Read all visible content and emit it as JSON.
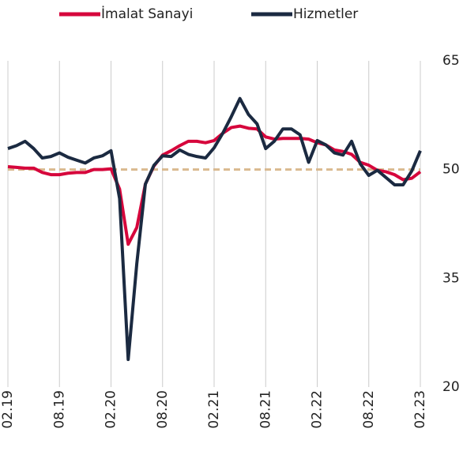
{
  "chart_data": {
    "type": "line",
    "categories": [
      "02.19",
      null,
      null,
      null,
      null,
      null,
      "08.19",
      null,
      null,
      null,
      null,
      null,
      "02.20",
      null,
      null,
      null,
      null,
      null,
      "08.20",
      null,
      null,
      null,
      null,
      null,
      "02.21",
      null,
      null,
      null,
      null,
      null,
      "08.21",
      null,
      null,
      null,
      null,
      null,
      "02.22",
      null,
      null,
      null,
      null,
      null,
      "08.22",
      null,
      null,
      null,
      null,
      null,
      "02.23"
    ],
    "series": [
      {
        "name": "İmalat Sanayi",
        "color": "#d6063c",
        "values": [
          50.4,
          50.3,
          50.2,
          50.2,
          49.6,
          49.3,
          49.3,
          49.5,
          49.6,
          49.6,
          50.0,
          50.0,
          50.1,
          47.3,
          39.7,
          42.0,
          48.0,
          50.5,
          52.0,
          52.6,
          53.3,
          53.9,
          53.9,
          53.7,
          54.0,
          55.0,
          55.8,
          56.0,
          55.7,
          55.6,
          54.5,
          54.2,
          54.3,
          54.3,
          54.3,
          54.2,
          53.7,
          53.4,
          52.7,
          52.5,
          52.1,
          51.0,
          50.6,
          49.9,
          49.7,
          49.3,
          48.6,
          48.8,
          49.7
        ]
      },
      {
        "name": "Hizmetler",
        "color": "#1b2a41",
        "values": [
          52.9,
          53.3,
          53.9,
          52.9,
          51.6,
          51.8,
          52.3,
          51.7,
          51.3,
          50.9,
          51.6,
          51.9,
          52.6,
          46.0,
          23.8,
          37.0,
          48.0,
          50.6,
          51.9,
          51.8,
          52.7,
          52.1,
          51.8,
          51.6,
          53.0,
          55.0,
          57.3,
          59.8,
          57.6,
          56.3,
          52.9,
          53.9,
          55.6,
          55.6,
          54.8,
          51.0,
          54.0,
          53.4,
          52.3,
          52.0,
          53.9,
          50.8,
          49.2,
          49.9,
          48.9,
          47.9,
          47.9,
          49.8,
          52.6
        ]
      }
    ],
    "ylim": [
      20,
      65
    ],
    "yticks": [
      20,
      35,
      50,
      65
    ],
    "reference_line": {
      "value": 50,
      "color": "#d9b98f"
    },
    "grid": true,
    "legend": "top"
  }
}
